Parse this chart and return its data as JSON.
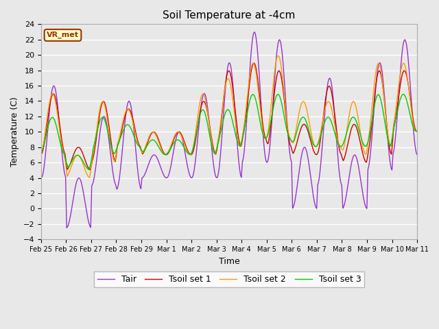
{
  "title": "Soil Temperature at -4cm",
  "xlabel": "Time",
  "ylabel": "Temperature (C)",
  "ylim": [
    -4,
    24
  ],
  "yticks": [
    -4,
    -2,
    0,
    2,
    4,
    6,
    8,
    10,
    12,
    14,
    16,
    18,
    20,
    22,
    24
  ],
  "legend_labels": [
    "Tair",
    "Tsoil set 1",
    "Tsoil set 2",
    "Tsoil set 3"
  ],
  "line_colors": [
    "#9933CC",
    "#CC0000",
    "#FF9900",
    "#00CC00"
  ],
  "annotation_text": "VR_met",
  "annotation_bg": "#FFFFCC",
  "annotation_border": "#993300",
  "plot_bg": "#E8E8E8",
  "fig_bg": "#E8E8E8",
  "grid_color": "#FFFFFF",
  "n_days": 15,
  "tick_labels": [
    "Feb 25",
    "Feb 26",
    "Feb 27",
    "Feb 28",
    "Feb 29",
    "Mar 1",
    "Mar 2",
    "Mar 3",
    "Mar 4",
    "Mar 5",
    "Mar 6",
    "Mar 7",
    "Mar 8",
    "Mar 9",
    "Mar 10",
    "Mar 11"
  ],
  "tair_peaks": [
    16,
    4,
    12,
    14,
    7,
    10,
    15,
    19,
    23,
    22,
    8,
    17,
    7,
    19,
    22
  ],
  "tair_troughs": [
    4,
    -2.5,
    3,
    2.5,
    4,
    4,
    4,
    4,
    6,
    6,
    0,
    3,
    0,
    5,
    7
  ],
  "ts1_peaks": [
    15,
    8,
    14,
    13,
    10,
    10,
    14,
    18,
    19,
    18,
    11,
    16,
    11,
    18,
    18
  ],
  "ts1_troughs": [
    7,
    5,
    6,
    8,
    7,
    7,
    7,
    8,
    9,
    8,
    7,
    7,
    6,
    7,
    10
  ],
  "ts2_peaks": [
    15,
    7,
    14,
    13,
    10,
    10,
    15,
    17,
    19,
    20,
    14,
    14,
    14,
    19,
    19
  ],
  "ts2_troughs": [
    7,
    4,
    6,
    8,
    7,
    7,
    7,
    8,
    9,
    9,
    8,
    8,
    7,
    8,
    10
  ],
  "ts3_peaks": [
    12,
    7,
    12,
    11,
    9,
    9,
    13,
    13,
    15,
    15,
    12,
    12,
    12,
    15,
    15
  ],
  "ts3_troughs": [
    7,
    5,
    7,
    8,
    7,
    7,
    7,
    8,
    9,
    9,
    8,
    8,
    8,
    8,
    10
  ]
}
